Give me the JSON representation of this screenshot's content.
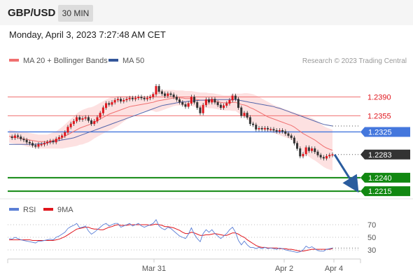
{
  "header": {
    "pair": "GBP/USD",
    "timeframe": "30 MIN"
  },
  "date_line": "Monday, April 3, 2023 7:27:48 AM CET",
  "legend": {
    "bb_label": "MA 20 + Bollinger Bands",
    "ma50_label": "MA 50",
    "copyright": "Research © 2023 Trading Central"
  },
  "rsi_legend": {
    "rsi_label": "RSI",
    "ma_label": "9MA"
  },
  "colors": {
    "bull": "#e0161d",
    "bear": "#e0161d",
    "ma20": "#f07070",
    "band": "#fddede",
    "ma50": "#5566aa",
    "blue_level": "#4477dd",
    "green_level": "#118811",
    "red_level": "#f07070",
    "rsi": "#5b7fd6",
    "rsi_ma": "#e0161d",
    "arrow": "#2a5c9e"
  },
  "chart_data": {
    "type": "candlestick",
    "ylim": [
      1.2206,
      1.244
    ],
    "price_levels": [
      {
        "value": 1.239,
        "label": "1.2390",
        "kind": "resistance"
      },
      {
        "value": 1.2355,
        "label": "1.2355",
        "kind": "resistance"
      },
      {
        "value": 1.2325,
        "label": "1.2325",
        "kind": "pivot"
      },
      {
        "value": 1.2283,
        "label": "1.2283",
        "kind": "last"
      },
      {
        "value": 1.224,
        "label": "1.2240",
        "kind": "support"
      },
      {
        "value": 1.2215,
        "label": "1.2215",
        "kind": "support"
      }
    ],
    "x_ticks": [
      "Mar 31",
      "Apr 2",
      "Apr 4"
    ],
    "closes": [
      1.2316,
      1.2314,
      1.2318,
      1.2316,
      1.2312,
      1.231,
      1.2306,
      1.2304,
      1.23,
      1.2298,
      1.2302,
      1.2302,
      1.2304,
      1.2306,
      1.2308,
      1.2306,
      1.2312,
      1.2315,
      1.2318,
      1.2324,
      1.2334,
      1.234,
      1.2345,
      1.2352,
      1.2348,
      1.235,
      1.2352,
      1.2346,
      1.234,
      1.2345,
      1.2352,
      1.236,
      1.237,
      1.2378,
      1.2376,
      1.238,
      1.2384,
      1.2386,
      1.2382,
      1.2384,
      1.2386,
      1.2388,
      1.2386,
      1.2388,
      1.239,
      1.2388,
      1.2386,
      1.2388,
      1.239,
      1.2395,
      1.241,
      1.24,
      1.2396,
      1.2392,
      1.2396,
      1.2394,
      1.239,
      1.2385,
      1.238,
      1.2376,
      1.2372,
      1.2378,
      1.239,
      1.238,
      1.237,
      1.236,
      1.2375,
      1.2385,
      1.238,
      1.2386,
      1.238,
      1.2375,
      1.237,
      1.2374,
      1.2378,
      1.2384,
      1.2392,
      1.2386,
      1.237,
      1.2355,
      1.236,
      1.2352,
      1.234,
      1.2338,
      1.233,
      1.2332,
      1.233,
      1.2332,
      1.233,
      1.233,
      1.2328,
      1.2326,
      1.2328,
      1.2326,
      1.2322,
      1.2318,
      1.2314,
      1.2304,
      1.2294,
      1.228,
      1.2284,
      1.2296,
      1.229,
      1.2294,
      1.2288,
      1.2282,
      1.2278,
      1.2276,
      1.228,
      1.2282,
      1.2283
    ],
    "ma20": [
      1.2317,
      1.2316,
      1.2315,
      1.2314,
      1.2313,
      1.2312,
      1.2311,
      1.231,
      1.2309,
      1.2308,
      1.2307,
      1.2307,
      1.2307,
      1.2307,
      1.2308,
      1.2309,
      1.231,
      1.2312,
      1.2314,
      1.2317,
      1.232,
      1.2323,
      1.2326,
      1.2329,
      1.2332,
      1.2334,
      1.2336,
      1.2338,
      1.234,
      1.2343,
      1.2346,
      1.2349,
      1.2352,
      1.2355,
      1.2358,
      1.236,
      1.2362,
      1.2364,
      1.2366,
      1.2368,
      1.237,
      1.2372,
      1.2373,
      1.2374,
      1.2375,
      1.2376,
      1.2377,
      1.2378,
      1.2379,
      1.238,
      1.2382,
      1.2383,
      1.2384,
      1.2385,
      1.2386,
      1.2387,
      1.2388,
      1.2388,
      1.2388,
      1.2388,
      1.2387,
      1.2387,
      1.2387,
      1.2386,
      1.2385,
      1.2384,
      1.2384,
      1.2384,
      1.2383,
      1.2383,
      1.2382,
      1.2381,
      1.238,
      1.2379,
      1.2379,
      1.2379,
      1.238,
      1.238,
      1.2378,
      1.2376,
      1.2375,
      1.2373,
      1.237,
      1.2368,
      1.2365,
      1.2362,
      1.2359,
      1.2356,
      1.2353,
      1.2351,
      1.2349,
      1.2347,
      1.2345,
      1.2343,
      1.2341,
      1.2339,
      1.2337,
      1.2334,
      1.233,
      1.2326,
      1.2322,
      1.2319,
      1.2316,
      1.2313,
      1.231,
      1.2306,
      1.2302,
      1.2298,
      1.2295,
      1.2293,
      1.2291
    ],
    "ma50": [
      1.2302,
      1.2302,
      1.2302,
      1.2302,
      1.2302,
      1.2302,
      1.2302,
      1.2302,
      1.2302,
      1.2302,
      1.2303,
      1.2303,
      1.2304,
      1.2305,
      1.2306,
      1.2307,
      1.2308,
      1.2309,
      1.231,
      1.2311,
      1.2312,
      1.2313,
      1.2314,
      1.2316,
      1.2318,
      1.232,
      1.2322,
      1.2324,
      1.2326,
      1.2328,
      1.233,
      1.2332,
      1.2334,
      1.2336,
      1.2338,
      1.234,
      1.2342,
      1.2344,
      1.2346,
      1.2348,
      1.235,
      1.2352,
      1.2354,
      1.2356,
      1.2358,
      1.236,
      1.2362,
      1.2364,
      1.2366,
      1.2368,
      1.237,
      1.2372,
      1.2374,
      1.2375,
      1.2376,
      1.2377,
      1.2378,
      1.2379,
      1.238,
      1.2381,
      1.2381,
      1.2382,
      1.2382,
      1.2383,
      1.2383,
      1.2384,
      1.2384,
      1.2384,
      1.2385,
      1.2385,
      1.2385,
      1.2385,
      1.2385,
      1.2385,
      1.2385,
      1.2385,
      1.2385,
      1.2385,
      1.2384,
      1.2383,
      1.2382,
      1.2381,
      1.238,
      1.2379,
      1.2378,
      1.2377,
      1.2376,
      1.2375,
      1.2374,
      1.2373,
      1.2372,
      1.237,
      1.2369,
      1.2367,
      1.2365,
      1.2363,
      1.2361,
      1.2359,
      1.2357,
      1.2355,
      1.2353,
      1.2351,
      1.2349,
      1.2347,
      1.2345,
      1.2343,
      1.2341,
      1.2339,
      1.2338,
      1.2337,
      1.2336
    ],
    "band_width": [
      0.0012,
      0.0012,
      0.0012,
      0.0012,
      0.0012,
      0.0012,
      0.0013,
      0.0013,
      0.0013,
      0.0013,
      0.0013,
      0.0013,
      0.0013,
      0.0013,
      0.0014,
      0.0015,
      0.0016,
      0.0018,
      0.002,
      0.0022,
      0.0024,
      0.0026,
      0.0028,
      0.003,
      0.0031,
      0.0032,
      0.0032,
      0.0032,
      0.0031,
      0.003,
      0.003,
      0.003,
      0.003,
      0.003,
      0.003,
      0.003,
      0.0029,
      0.0028,
      0.0026,
      0.0024,
      0.0022,
      0.002,
      0.0018,
      0.0016,
      0.0015,
      0.0014,
      0.0013,
      0.0013,
      0.0014,
      0.0016,
      0.002,
      0.002,
      0.0019,
      0.0018,
      0.0017,
      0.0016,
      0.0015,
      0.0014,
      0.0014,
      0.0014,
      0.0014,
      0.0014,
      0.0014,
      0.0014,
      0.0014,
      0.0014,
      0.0014,
      0.0014,
      0.0014,
      0.0014,
      0.0014,
      0.0014,
      0.0014,
      0.0014,
      0.0014,
      0.0014,
      0.0016,
      0.0016,
      0.0018,
      0.002,
      0.0022,
      0.0024,
      0.0026,
      0.0027,
      0.0028,
      0.0028,
      0.0028,
      0.0028,
      0.0028,
      0.0027,
      0.0026,
      0.0026,
      0.0026,
      0.0026,
      0.0026,
      0.0026,
      0.0026,
      0.0027,
      0.0029,
      0.0032,
      0.0034,
      0.0036,
      0.0037,
      0.0038,
      0.0038,
      0.0038,
      0.0038,
      0.0038,
      0.0038,
      0.0038,
      0.0038
    ],
    "forecast": {
      "from": 1.2283,
      "to": 1.2215
    },
    "rsi": {
      "ylim": [
        20,
        80
      ],
      "levels": [
        70,
        50,
        30
      ],
      "values": [
        48,
        47,
        50,
        48,
        46,
        45,
        44,
        43,
        42,
        41,
        44,
        44,
        45,
        46,
        47,
        46,
        50,
        52,
        55,
        58,
        64,
        67,
        69,
        72,
        65,
        66,
        68,
        60,
        55,
        58,
        62,
        66,
        70,
        72,
        68,
        70,
        72,
        72,
        66,
        68,
        70,
        72,
        68,
        70,
        72,
        68,
        66,
        68,
        70,
        72,
        78,
        68,
        64,
        62,
        66,
        64,
        60,
        56,
        52,
        50,
        48,
        55,
        65,
        55,
        48,
        43,
        56,
        62,
        58,
        62,
        56,
        52,
        48,
        52,
        56,
        62,
        66,
        58,
        45,
        38,
        44,
        38,
        34,
        34,
        32,
        34,
        32,
        34,
        32,
        33,
        32,
        31,
        33,
        32,
        30,
        29,
        28,
        27,
        26,
        27,
        30,
        36,
        33,
        35,
        32,
        29,
        28,
        28,
        31,
        32,
        33
      ],
      "ma": [
        46,
        46,
        46,
        46,
        46,
        46,
        46,
        46,
        45,
        45,
        45,
        45,
        45,
        45,
        45,
        45,
        46,
        47,
        49,
        51,
        54,
        57,
        60,
        63,
        64,
        65,
        66,
        66,
        64,
        63,
        63,
        62,
        62,
        64,
        66,
        67,
        69,
        70,
        69,
        69,
        69,
        70,
        70,
        70,
        70,
        70,
        70,
        70,
        69,
        70,
        71,
        70,
        69,
        67,
        67,
        66,
        65,
        63,
        61,
        58,
        56,
        56,
        58,
        57,
        55,
        53,
        53,
        54,
        54,
        55,
        56,
        55,
        54,
        53,
        53,
        55,
        57,
        57,
        55,
        52,
        50,
        46,
        43,
        40,
        37,
        35,
        34,
        34,
        33,
        33,
        33,
        33,
        32,
        32,
        32,
        31,
        31,
        30,
        29,
        28,
        28,
        29,
        30,
        31,
        31,
        31,
        31,
        31,
        31,
        31,
        32
      ]
    }
  }
}
